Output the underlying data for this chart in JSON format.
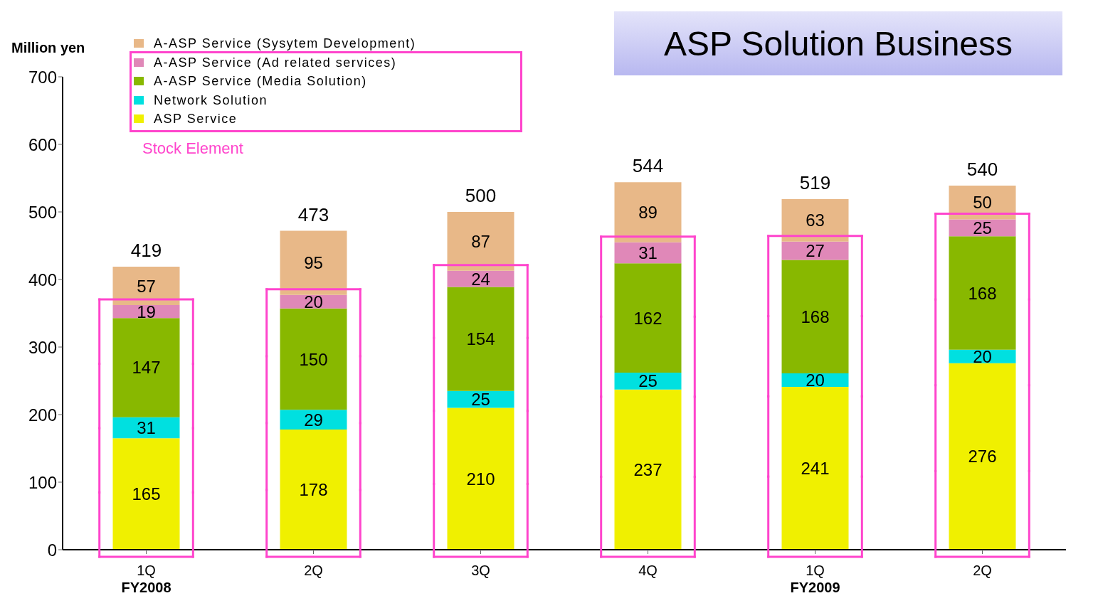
{
  "chart_data": {
    "type": "bar",
    "title": "ASP Solution Business",
    "ylabel": "Million yen",
    "stacked": true,
    "data_labels": true,
    "grid": false,
    "legend": "top left",
    "categories": [
      "1Q",
      "2Q",
      "3Q",
      "4Q",
      "1Q",
      "2Q"
    ],
    "series": [
      {
        "name": "ASP Service",
        "color": "#f0f000",
        "values": [
          165,
          178,
          210,
          237,
          241,
          276
        ]
      },
      {
        "name": "Network Solution",
        "color": "#00e0e0",
        "values": [
          31,
          29,
          25,
          25,
          20,
          20
        ]
      },
      {
        "name": "A-ASP Service (Media Solution)",
        "color": "#88b800",
        "values": [
          147,
          150,
          154,
          162,
          168,
          168
        ]
      },
      {
        "name": "A-ASP Service (Ad related services)",
        "color": "#e088b8",
        "values": [
          19,
          20,
          24,
          31,
          27,
          25
        ]
      },
      {
        "name": "A-ASP Service (Sysytem Development)",
        "color": "#e8b888",
        "values": [
          57,
          95,
          87,
          89,
          63,
          50
        ]
      }
    ],
    "totals": [
      "419",
      "473",
      "500",
      "544",
      "519",
      "540"
    ],
    "ylim": [
      0,
      700
    ],
    "yticks": [
      0,
      100,
      200,
      300,
      400,
      500,
      600,
      700
    ],
    "annotations": [
      "Stock Element",
      "FY2008",
      "FY2009"
    ]
  }
}
